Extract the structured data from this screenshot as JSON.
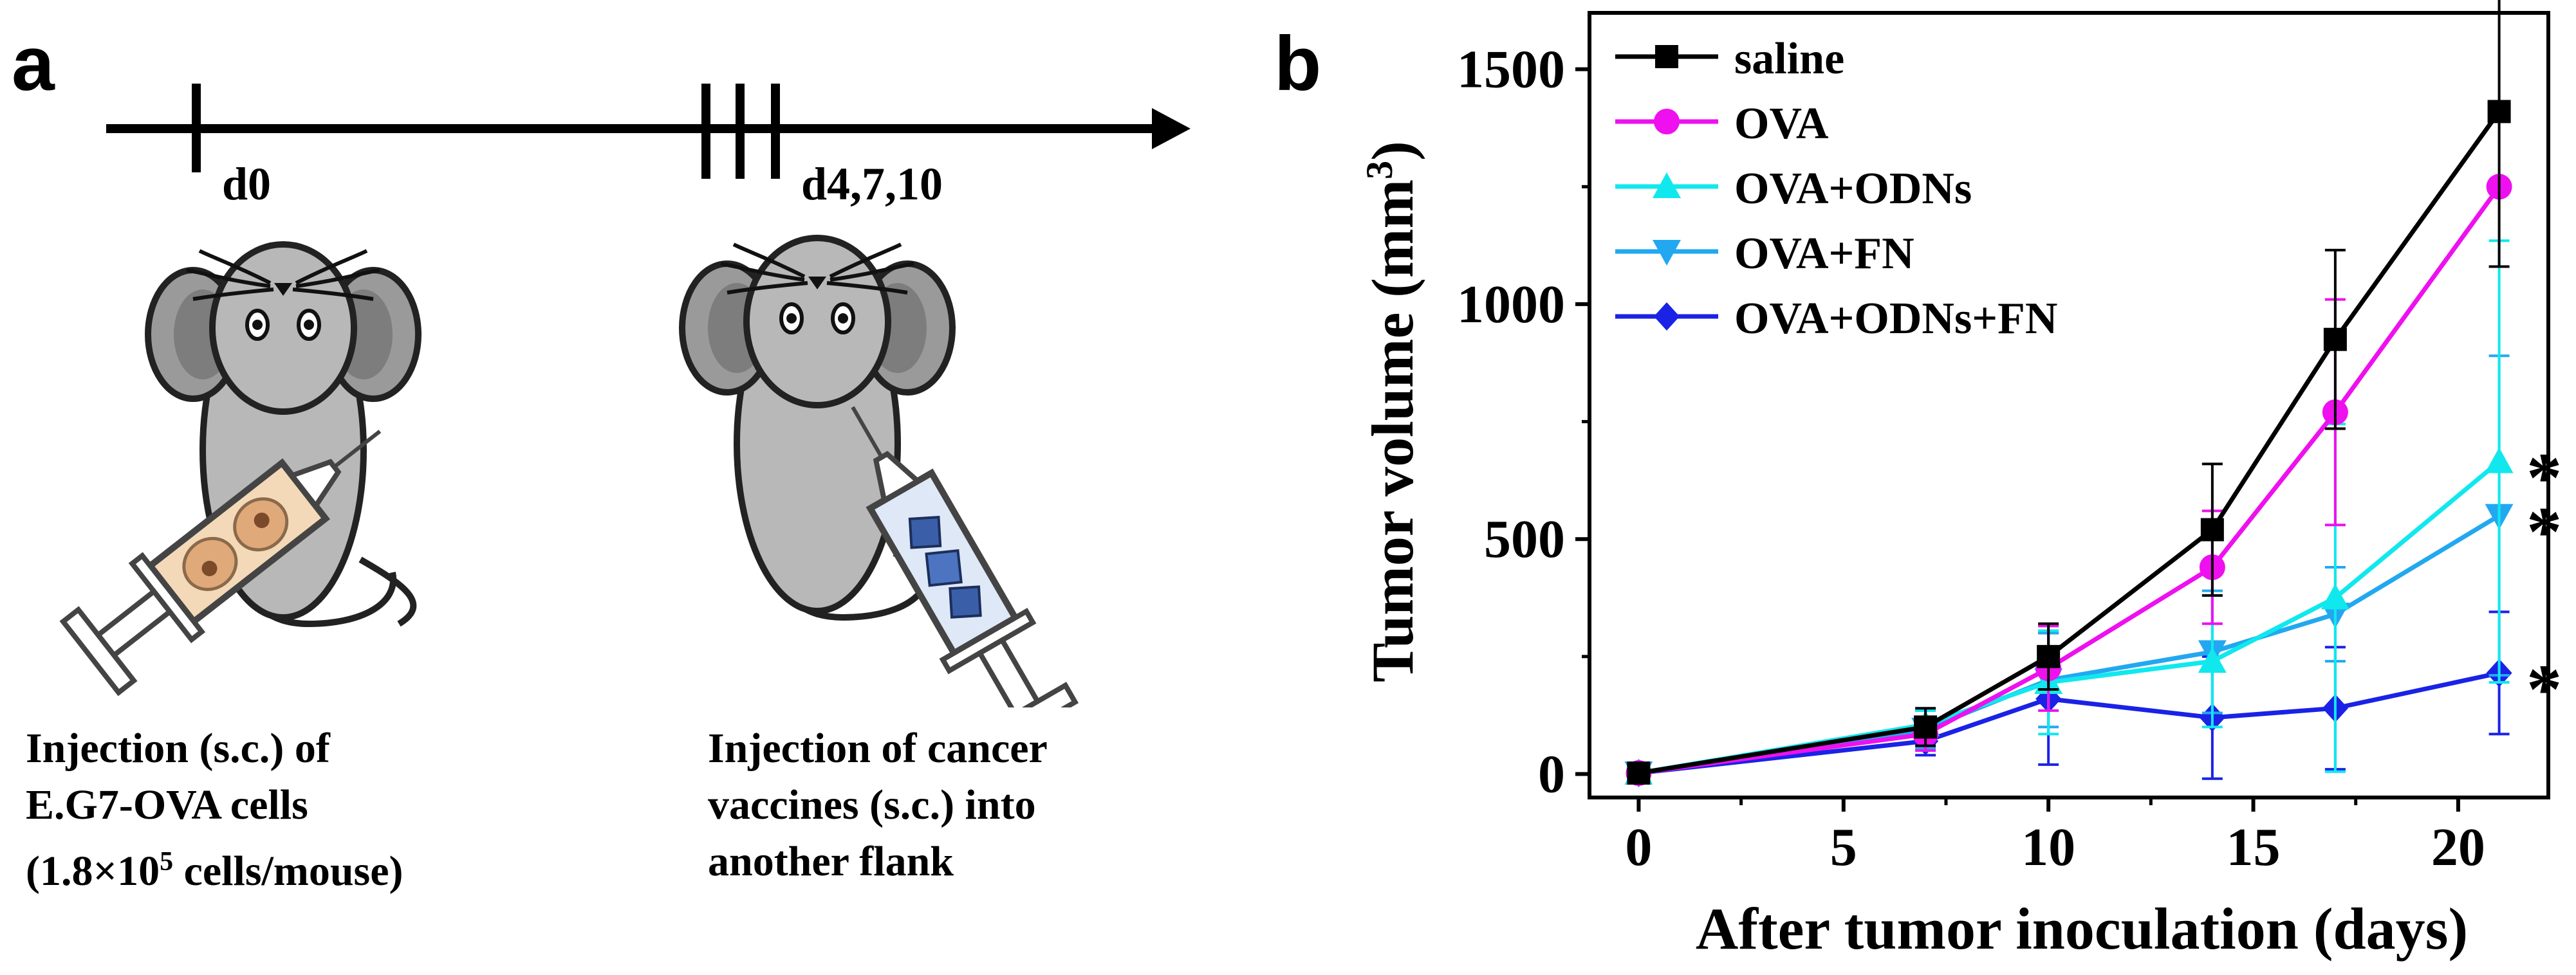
{
  "panel_a": {
    "label": "a",
    "timepoint_1": "d0",
    "timepoint_2": "d4,7,10",
    "caption_left": [
      "Injection (s.c.) of",
      "E.G7-OVA cells",
      "(1.8×10",
      "5",
      " cells/mouse)"
    ],
    "caption_right": [
      "Injection of cancer",
      "vaccines (s.c.) into",
      "another flank"
    ]
  },
  "chart_data": {
    "type": "line",
    "panel_label": "b",
    "title": "",
    "xlabel": "After tumor inoculation (days)",
    "ylabel": "Tumor volume (mm",
    "ylabel_sup": "3",
    "ylabel_tail": ")",
    "xlim": [
      -1.2,
      22.2
    ],
    "ylim": [
      -50,
      1620
    ],
    "xticks": [
      0,
      5,
      10,
      15,
      20
    ],
    "yticks": [
      0,
      500,
      1000,
      1500
    ],
    "legend_position": "top-left",
    "x": [
      0,
      7,
      10,
      14,
      17,
      21
    ],
    "series": [
      {
        "name": "saline",
        "color": "#000000",
        "marker": "square",
        "values": [
          2,
          100,
          250,
          520,
          925,
          1410
        ],
        "errors": [
          5,
          40,
          70,
          140,
          190,
          330
        ]
      },
      {
        "name": "OVA",
        "color": "#ee10ee",
        "marker": "circle",
        "values": [
          2,
          85,
          225,
          440,
          770,
          1250
        ],
        "errors": [
          5,
          35,
          90,
          120,
          240,
          0
        ]
      },
      {
        "name": "OVA+ODNs",
        "color": "#10e8ee",
        "marker": "triangle-up",
        "values": [
          2,
          105,
          195,
          240,
          375,
          665
        ],
        "errors": [
          5,
          30,
          110,
          140,
          370,
          470
        ]
      },
      {
        "name": "OVA+FN",
        "color": "#22a8f0",
        "marker": "triangle-down",
        "values": [
          2,
          95,
          200,
          260,
          340,
          550
        ],
        "errors": [
          5,
          40,
          100,
          130,
          100,
          340
        ]
      },
      {
        "name": "OVA+ODNs+FN",
        "color": "#1a22e6",
        "marker": "diamond",
        "values": [
          2,
          70,
          160,
          120,
          140,
          215
        ],
        "errors": [
          5,
          30,
          140,
          130,
          130,
          130
        ]
      }
    ],
    "significance": [
      {
        "series": "OVA+ODNs",
        "text": "*"
      },
      {
        "series": "OVA+FN",
        "text": "*"
      },
      {
        "series": "OVA+ODNs+FN",
        "text": "*"
      }
    ]
  }
}
